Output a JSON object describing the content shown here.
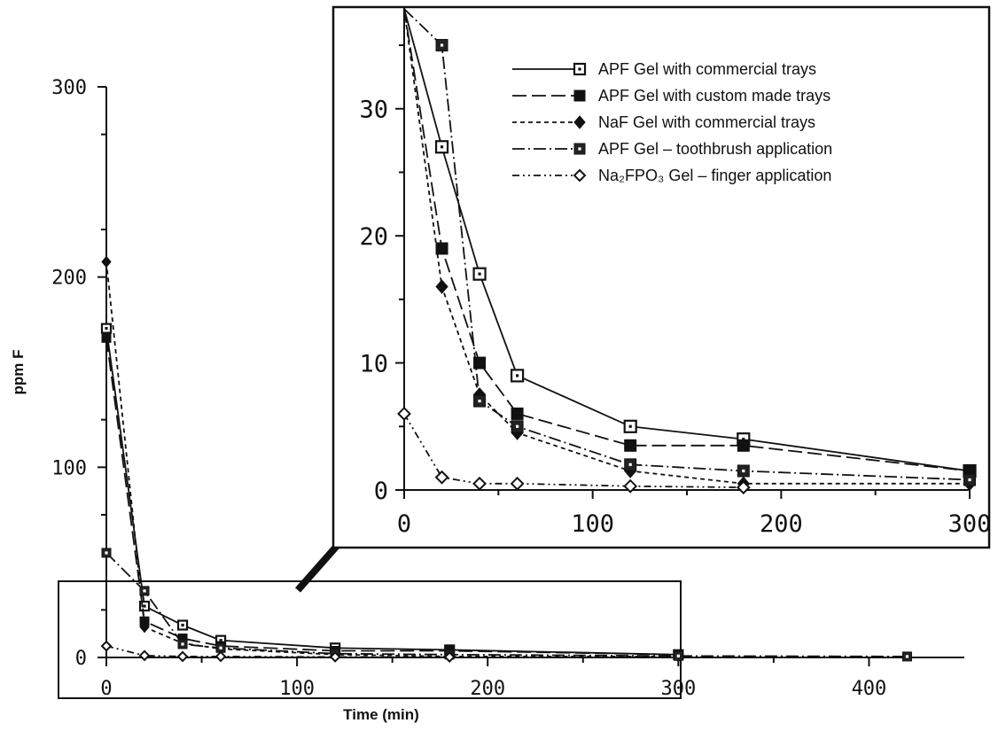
{
  "chart_data": [
    {
      "type": "line",
      "title": "",
      "xlabel": "Time (min)",
      "ylabel": "ppm F",
      "xlim": [
        0,
        450
      ],
      "ylim": [
        0,
        300
      ],
      "x_ticks": [
        "0",
        "100",
        "200",
        "300",
        "400"
      ],
      "y_ticks": [
        "0",
        "100",
        "200",
        "300"
      ],
      "series": [
        {
          "name": "APF Gel with commercial trays",
          "marker": "square-dot",
          "dash": "solid",
          "x": [
            0,
            20,
            40,
            60,
            120,
            180,
            300
          ],
          "y": [
            173,
            27,
            17,
            9,
            5,
            4,
            1.5
          ]
        },
        {
          "name": "APF Gel with custom made trays",
          "marker": "square-filled",
          "dash": "long-dash",
          "x": [
            0,
            20,
            40,
            60,
            120,
            180,
            300
          ],
          "y": [
            168,
            19,
            10,
            6,
            3.5,
            3.5,
            1.5
          ]
        },
        {
          "name": "NaF Gel with commercial trays",
          "marker": "diamond-filled",
          "dash": "short-dash",
          "x": [
            0,
            20,
            40,
            60,
            120,
            180,
            300
          ],
          "y": [
            208,
            16,
            7.5,
            4.5,
            1.5,
            0.5,
            0.5
          ]
        },
        {
          "name": "APF Gel – toothbrush application",
          "marker": "square-x",
          "dash": "dash-dot",
          "x": [
            0,
            20,
            40,
            60,
            120,
            180,
            300,
            420
          ],
          "y": [
            55,
            35,
            7,
            5,
            2,
            1.5,
            0.8,
            0.5
          ]
        },
        {
          "name": "Na₂FPO₃ Gel – finger application",
          "marker": "diamond-open",
          "dash": "dash-dot-dot",
          "x": [
            0,
            20,
            40,
            60,
            120,
            180
          ],
          "y": [
            6,
            1,
            0.5,
            0.5,
            0.3,
            0.2
          ]
        }
      ]
    },
    {
      "type": "line",
      "title": "",
      "xlabel": "",
      "ylabel": "",
      "xlim": [
        0,
        300
      ],
      "ylim": [
        0,
        38
      ],
      "x_ticks": [
        "0",
        "100",
        "200",
        "300"
      ],
      "y_ticks": [
        "0",
        "10",
        "20",
        "30"
      ],
      "legend_position": "top-right",
      "series_ref": "same as main chart"
    }
  ]
}
